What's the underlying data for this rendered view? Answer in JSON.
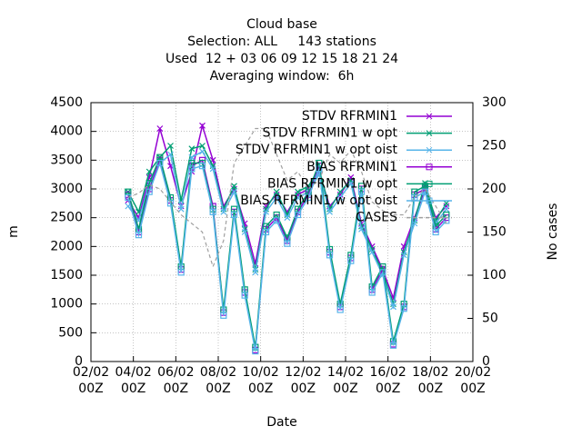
{
  "chart_data": {
    "type": "line",
    "title": "Cloud base",
    "subtitle": [
      "Selection: ALL     143 stations",
      "Used  12 + 03 06 09 12 15 18 21 24",
      "Averaging window:  6h"
    ],
    "xlabel": "Date",
    "ylabel": "m",
    "y2label": "No cases",
    "x": [
      3.75,
      4.25,
      4.75,
      5.25,
      5.75,
      6.25,
      6.75,
      7.25,
      7.75,
      8.25,
      8.75,
      9.25,
      9.75,
      10.25,
      10.75,
      11.25,
      11.75,
      12.25,
      12.75,
      13.25,
      13.75,
      14.25,
      14.75,
      15.25,
      15.75,
      16.25,
      16.75,
      17.25,
      17.75,
      18.25,
      18.75
    ],
    "xlim": [
      2,
      20
    ],
    "xticks": [
      {
        "value": 2,
        "label": "02/02\n00Z"
      },
      {
        "value": 4,
        "label": "04/02\n00Z"
      },
      {
        "value": 6,
        "label": "06/02\n00Z"
      },
      {
        "value": 8,
        "label": "08/02\n00Z"
      },
      {
        "value": 10,
        "label": "10/02\n00Z"
      },
      {
        "value": 12,
        "label": "12/02\n00Z"
      },
      {
        "value": 14,
        "label": "14/02\n00Z"
      },
      {
        "value": 16,
        "label": "16/02\n00Z"
      },
      {
        "value": 18,
        "label": "18/02\n00Z"
      },
      {
        "value": 20,
        "label": "20/02\n00Z"
      }
    ],
    "ylim": [
      0,
      4500
    ],
    "yticks": [
      0,
      500,
      1000,
      1500,
      2000,
      2500,
      3000,
      3500,
      4000,
      4500
    ],
    "y2lim": [
      0,
      300
    ],
    "y2ticks": [
      0,
      50,
      100,
      150,
      200,
      250,
      300
    ],
    "grid": true,
    "legend": "top-right",
    "series": [
      {
        "name": "STDV RFRMIN1",
        "color": "#9400d3",
        "marker": "x",
        "values": [
          2800,
          2500,
          3200,
          4050,
          3400,
          2700,
          3300,
          4100,
          3500,
          2700,
          3000,
          2400,
          1700,
          2700,
          2900,
          2600,
          2900,
          3000,
          3300,
          2700,
          2900,
          3200,
          2400,
          2000,
          1600,
          1100,
          2000,
          2500,
          3000,
          2500,
          2700
        ]
      },
      {
        "name": "STDV RFRMIN1 w opt",
        "color": "#009e73",
        "marker": "x",
        "values": [
          2950,
          2600,
          3300,
          3550,
          3750,
          2800,
          3700,
          3750,
          3400,
          2650,
          3050,
          2300,
          1600,
          2650,
          2950,
          2550,
          2950,
          3050,
          3350,
          2650,
          2950,
          3150,
          2350,
          1950,
          1550,
          1000,
          1900,
          2450,
          3100,
          2450,
          2750
        ]
      },
      {
        "name": "STDV RFRMIN1 w opt oist",
        "color": "#56b4e9",
        "marker": "x",
        "values": [
          2700,
          2450,
          3100,
          3450,
          3600,
          2650,
          3550,
          3650,
          3350,
          2600,
          2950,
          2250,
          1550,
          2600,
          2850,
          2500,
          2850,
          2950,
          3250,
          2600,
          2850,
          3100,
          2300,
          1900,
          1500,
          950,
          1850,
          2400,
          2950,
          2400,
          2650
        ]
      },
      {
        "name": "BIAS RFRMIN1",
        "color": "#9400d3",
        "marker": "square",
        "values": [
          2900,
          2250,
          3000,
          3500,
          2800,
          1600,
          3400,
          3500,
          2700,
          850,
          2600,
          1200,
          200,
          2300,
          2500,
          2100,
          2600,
          2900,
          3400,
          1900,
          950,
          1800,
          3000,
          1250,
          1600,
          300,
          950,
          2900,
          3000,
          2300,
          2500
        ]
      },
      {
        "name": "BIAS RFRMIN1 w opt",
        "color": "#009e73",
        "marker": "square",
        "values": [
          2950,
          2300,
          3100,
          3550,
          2850,
          1650,
          3450,
          3450,
          2650,
          900,
          2650,
          1250,
          250,
          2350,
          2550,
          2150,
          2650,
          2950,
          3450,
          1950,
          1000,
          1850,
          3050,
          1300,
          1650,
          350,
          1000,
          2950,
          3050,
          2350,
          2550
        ]
      },
      {
        "name": "BIAS RFRMIN1 w opt oist",
        "color": "#56b4e9",
        "marker": "square",
        "values": [
          2850,
          2200,
          2950,
          3450,
          2750,
          1550,
          3350,
          3400,
          2600,
          800,
          2550,
          1150,
          180,
          2250,
          2450,
          2050,
          2550,
          2850,
          3350,
          1850,
          900,
          1750,
          2950,
          1200,
          1550,
          280,
          920,
          2850,
          2950,
          2250,
          2450
        ]
      },
      {
        "name": "CASES",
        "color": "#a0a0a0",
        "dash": true,
        "axis": "y2",
        "values": [
          190,
          195,
          205,
          200,
          185,
          170,
          160,
          150,
          110,
          140,
          230,
          250,
          270,
          270,
          240,
          210,
          220,
          200,
          210,
          240,
          230,
          245,
          220,
          185,
          175,
          170,
          170,
          190,
          200,
          180,
          160
        ]
      }
    ]
  }
}
